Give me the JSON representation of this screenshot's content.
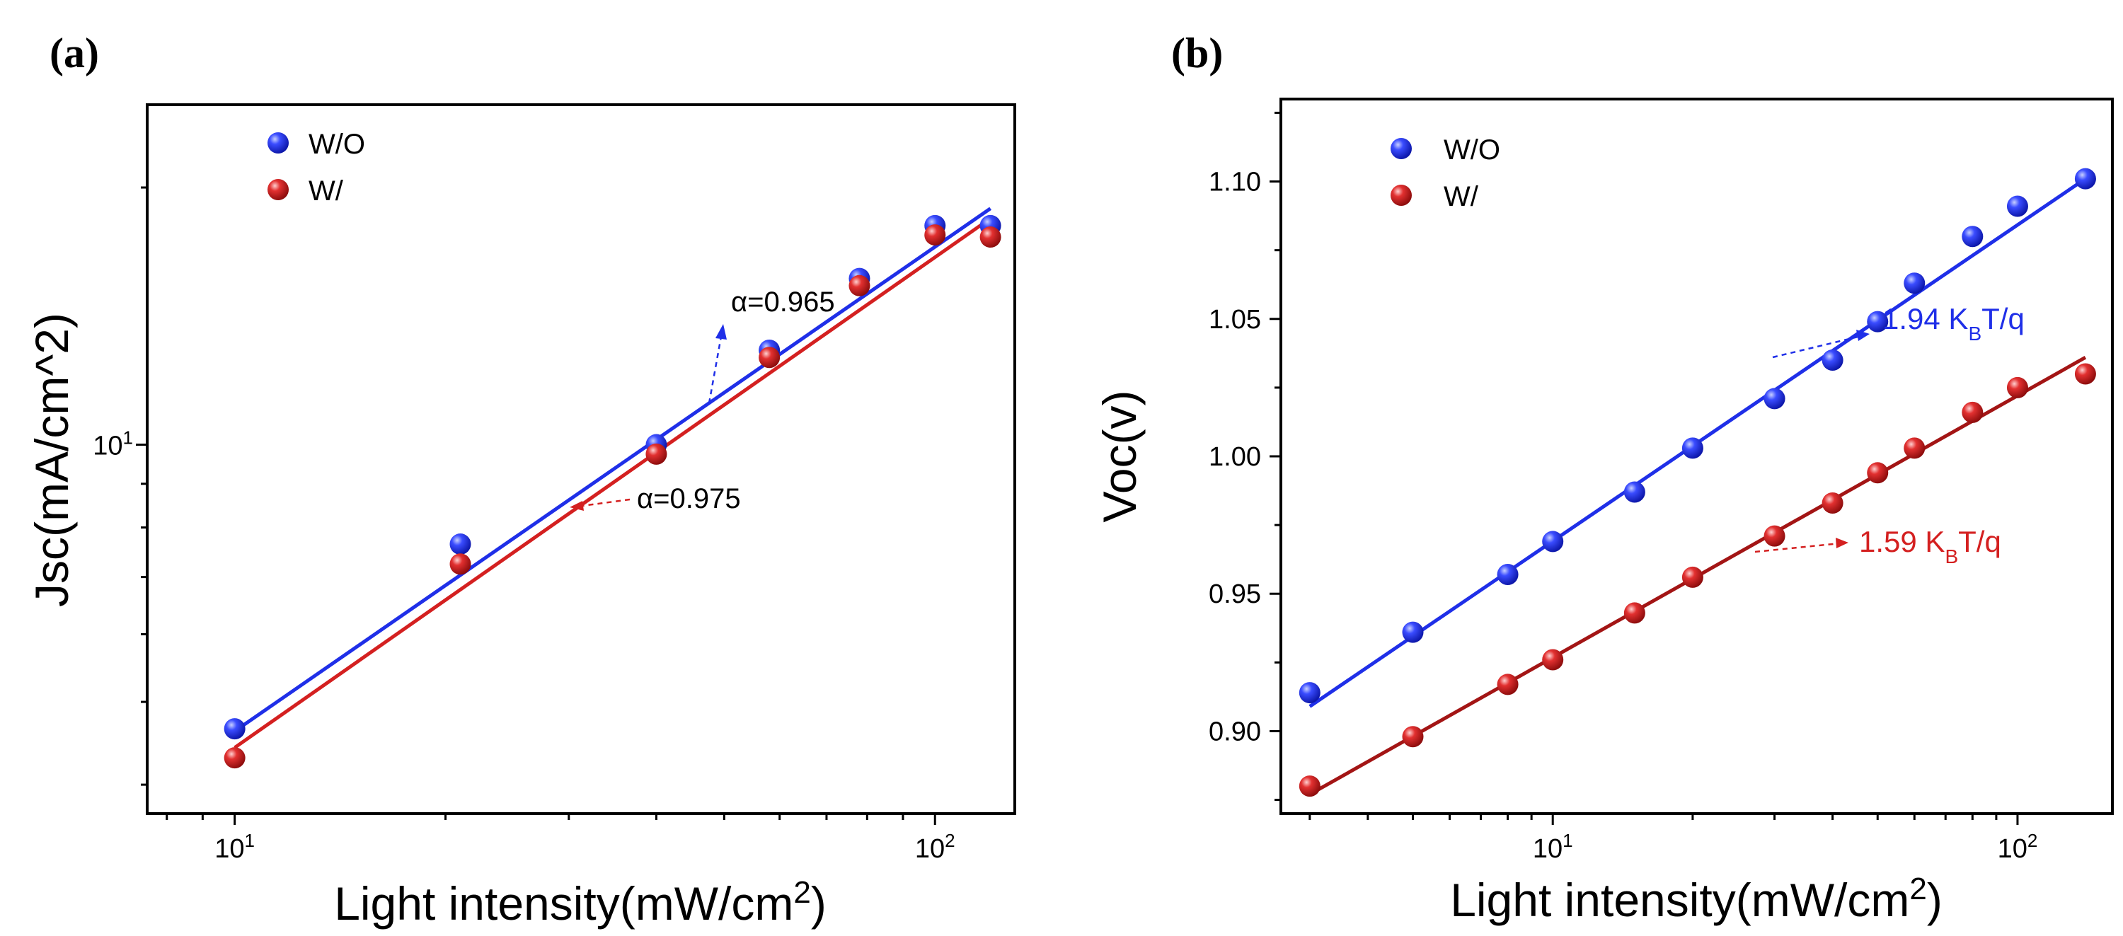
{
  "chart_data": [
    {
      "panel_label": "(a)",
      "type": "scatter",
      "xscale": "log",
      "yscale": "log",
      "xlabel": "Light intensity(mW/cm",
      "xlabel_sup": "2",
      "xlabel_end": ")",
      "ylabel": "Jsc(mA/cm^2)",
      "xlim": [
        7.5,
        130
      ],
      "ylim": [
        3.7,
        25
      ],
      "x_ticks": [
        {
          "value": 10,
          "base": "10",
          "exp": "1"
        },
        {
          "value": 100,
          "base": "10",
          "exp": "2"
        }
      ],
      "y_ticks": [
        {
          "value": 10,
          "base": "10",
          "exp": "1"
        }
      ],
      "legend_position": "top-left",
      "series": [
        {
          "name": "W/O",
          "color": "#1f2fe8",
          "x": [
            10,
            21,
            40,
            58,
            78,
            100,
            120
          ],
          "y": [
            4.65,
            7.65,
            10.0,
            12.9,
            15.65,
            18.05,
            18.05
          ],
          "fit": {
            "x": [
              10,
              120
            ],
            "y": [
              4.62,
              18.9
            ]
          },
          "fit_label": "α=0.965"
        },
        {
          "name": "W/",
          "color": "#d42020",
          "x": [
            10,
            21,
            40,
            58,
            78,
            100,
            120
          ],
          "y": [
            4.3,
            7.25,
            9.75,
            12.65,
            15.35,
            17.6,
            17.5
          ],
          "fit": {
            "x": [
              10,
              120
            ],
            "y": [
              4.42,
              18.4
            ]
          },
          "fit_label": "α=0.975"
        }
      ]
    },
    {
      "panel_label": "(b)",
      "type": "scatter",
      "xscale": "log",
      "yscale": "linear",
      "xlabel": "Light intensity(mW/cm",
      "xlabel_sup": "2",
      "xlabel_end": ")",
      "ylabel": "Voc(v)",
      "xlim": [
        2.6,
        160
      ],
      "ylim": [
        0.87,
        1.13
      ],
      "x_ticks": [
        {
          "value": 10,
          "base": "10",
          "exp": "1"
        },
        {
          "value": 100,
          "base": "10",
          "exp": "2"
        }
      ],
      "y_ticks": [
        "0.90",
        "0.95",
        "1.00",
        "1.05",
        "1.10"
      ],
      "legend_position": "top-left",
      "series": [
        {
          "name": "W/O",
          "color": "#1f2fe8",
          "fit_color": "#1f2fe8",
          "x": [
            3,
            5,
            8,
            10,
            15,
            20,
            30,
            40,
            50,
            60,
            80,
            100,
            140
          ],
          "y": [
            0.914,
            0.936,
            0.957,
            0.969,
            0.987,
            1.003,
            1.021,
            1.035,
            1.049,
            1.063,
            1.08,
            1.091,
            1.101
          ],
          "fit": {
            "x": [
              3,
              140
            ],
            "y": [
              0.909,
              1.101
            ]
          },
          "fit_label_main": "1.94 K",
          "fit_label_sub": "B",
          "fit_label_end": "T/q"
        },
        {
          "name": "W/",
          "color": "#d42020",
          "fit_color": "#a31515",
          "x": [
            3,
            5,
            8,
            10,
            15,
            20,
            30,
            40,
            50,
            60,
            80,
            100,
            140
          ],
          "y": [
            0.88,
            0.898,
            0.917,
            0.926,
            0.943,
            0.956,
            0.971,
            0.983,
            0.994,
            1.003,
            1.016,
            1.025,
            1.03
          ],
          "fit": {
            "x": [
              3,
              140
            ],
            "y": [
              0.877,
              1.036
            ]
          },
          "fit_label_main": "1.59 K",
          "fit_label_sub": "B",
          "fit_label_end": "T/q"
        }
      ]
    }
  ]
}
